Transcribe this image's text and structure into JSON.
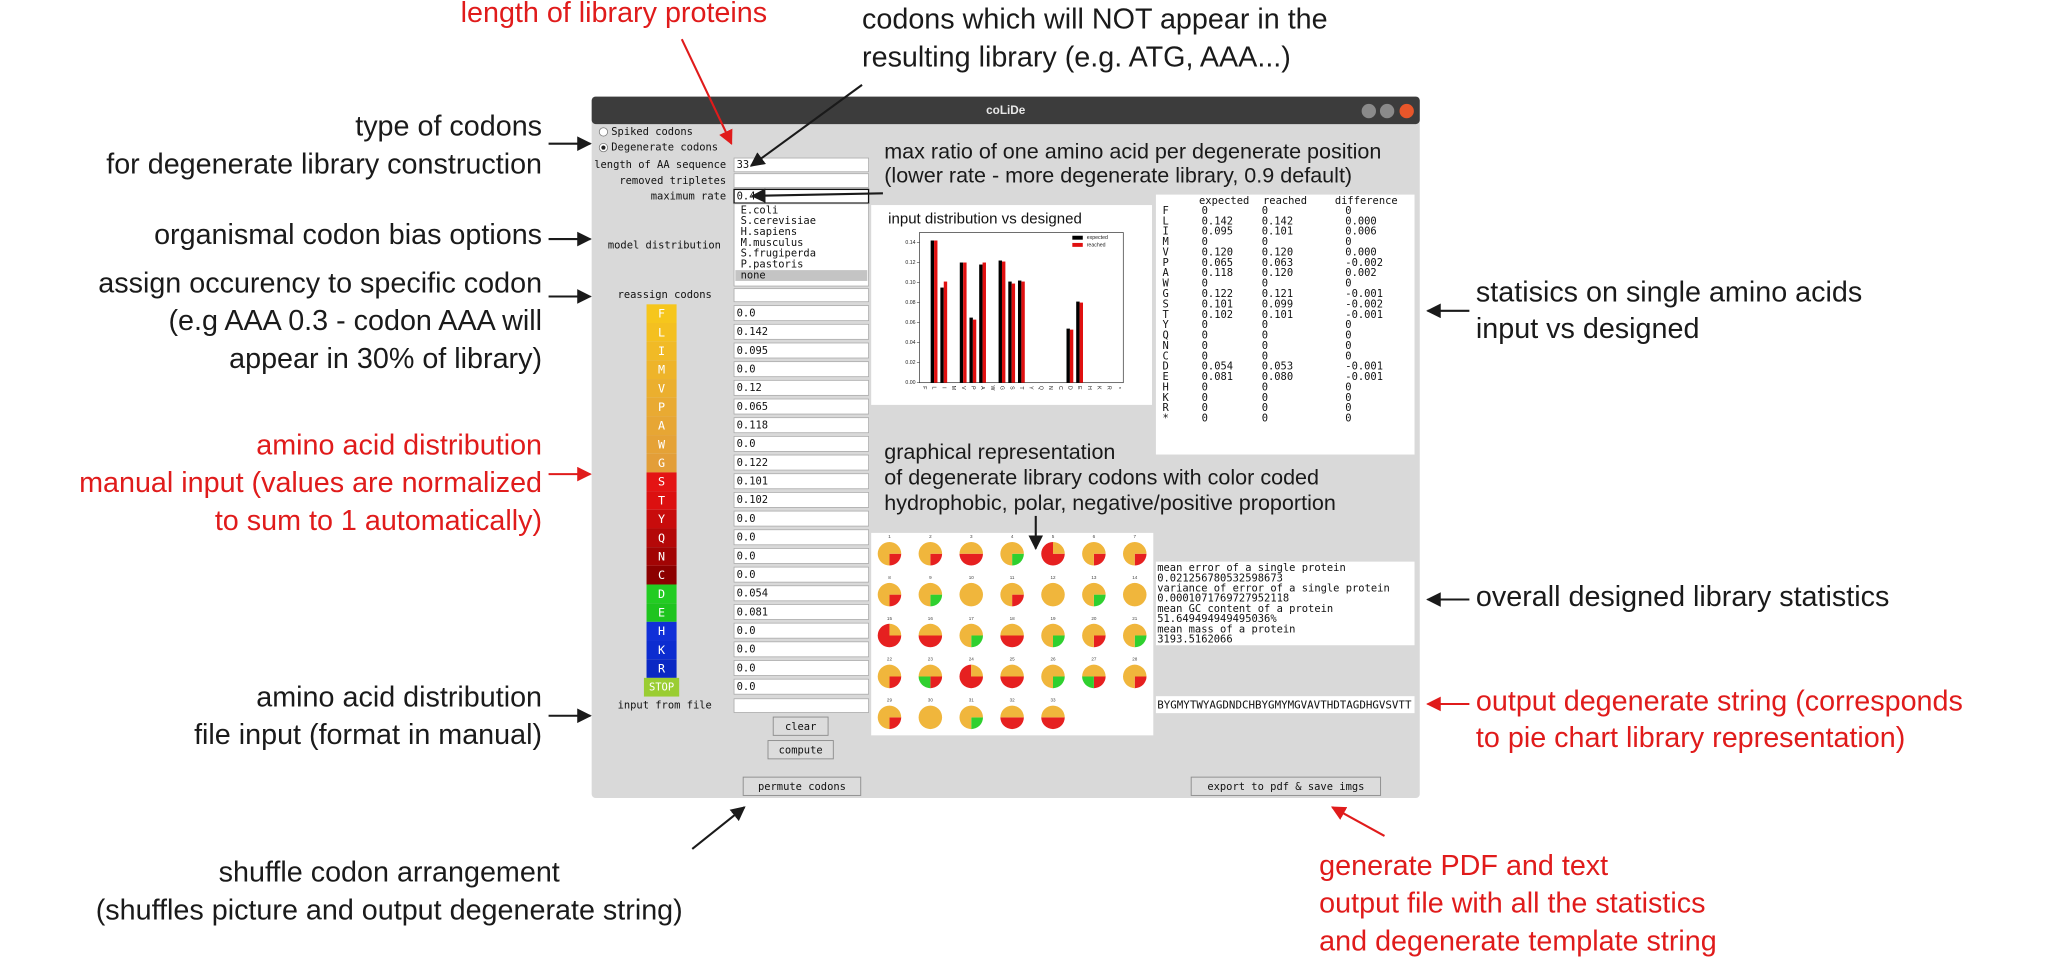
{
  "annotations": [
    {
      "lines": [
        "length of library proteins"
      ],
      "color": "#e01b1b"
    },
    {
      "lines": [
        "codons which will NOT appear in the",
        "resulting library (e.g. ATG, AAA...)"
      ],
      "color": "#1a1a1a"
    },
    {
      "lines": [
        "type of codons",
        "for degenerate library construction"
      ],
      "color": "#1a1a1a"
    },
    {
      "lines": [
        "max ratio of one amino acid per degenerate position",
        "(lower rate - more degenerate library, 0.9 default)"
      ],
      "color": "#1a1a1a"
    },
    {
      "lines": [
        "organismal codon bias options"
      ],
      "color": "#1a1a1a"
    },
    {
      "lines": [
        "assign occurency to specific codon",
        "(e.g AAA 0.3 - codon AAA will",
        "appear in 30% of library)"
      ],
      "color": "#1a1a1a"
    },
    {
      "lines": [
        "statisics on single amino acids",
        "input vs designed"
      ],
      "color": "#1a1a1a"
    },
    {
      "lines": [
        "amino acid distribution",
        "manual input (values are normalized",
        "to sum to 1 automatically)"
      ],
      "color": "#e01b1b"
    },
    {
      "lines": [
        "graphical representation",
        "of degenerate library codons with color coded",
        "hydrophobic, polar, negative/positive proportion"
      ],
      "color": "#1a1a1a"
    },
    {
      "lines": [
        "overall designed library statistics"
      ],
      "color": "#1a1a1a"
    },
    {
      "lines": [
        "amino acid distribution",
        "file input (format in manual)"
      ],
      "color": "#1a1a1a"
    },
    {
      "lines": [
        "output degenerate string (corresponds",
        "to pie chart library representation)"
      ],
      "color": "#e01b1b"
    },
    {
      "lines": [
        "shuffle codon arrangement",
        "(shuffles picture and output degenerate string)"
      ],
      "color": "#1a1a1a"
    },
    {
      "lines": [
        "generate PDF and text",
        "output file with all the statistics",
        "and degenerate template string"
      ],
      "color": "#e01b1b"
    }
  ],
  "window": {
    "title": "coLiDe",
    "radios": [
      "Spiked codons",
      "Degenerate codons"
    ],
    "selected_radio": 1,
    "fields": [
      {
        "label": "length of AA sequence",
        "value": "33"
      },
      {
        "label": "removed tripletes"
      },
      {
        "label": "maximum rate",
        "value": "0.4"
      }
    ],
    "model_label": "model distribution",
    "models": [
      "E.coli",
      "S.cerevisiae",
      "H.sapiens",
      "M.musculus",
      "S.frugiperda",
      "P.pastoris",
      "none"
    ],
    "selected_model": 6,
    "reassign_label": "reassign codons",
    "amino_acids": [
      {
        "letter": "F",
        "color": "#f6c61c",
        "value": "0.0"
      },
      {
        "letter": "L",
        "color": "#f4c020",
        "value": "0.142"
      },
      {
        "letter": "I",
        "color": "#f1ba26",
        "value": "0.095"
      },
      {
        "letter": "M",
        "color": "#eeb42a",
        "value": "0.0"
      },
      {
        "letter": "V",
        "color": "#ebaf2e",
        "value": "0.12"
      },
      {
        "letter": "P",
        "color": "#e9aa32",
        "value": "0.065"
      },
      {
        "letter": "A",
        "color": "#e7a634",
        "value": "0.118"
      },
      {
        "letter": "W",
        "color": "#e5a236",
        "value": "0.0"
      },
      {
        "letter": "G",
        "color": "#e39e38",
        "value": "0.122"
      },
      {
        "letter": "S",
        "color": "#e41414",
        "value": "0.101"
      },
      {
        "letter": "T",
        "color": "#dc1010",
        "value": "0.102"
      },
      {
        "letter": "Y",
        "color": "#c80c0c",
        "value": "0.0"
      },
      {
        "letter": "Q",
        "color": "#b40808",
        "value": "0.0"
      },
      {
        "letter": "N",
        "color": "#a20404",
        "value": "0.0"
      },
      {
        "letter": "C",
        "color": "#8c0000",
        "value": "0.0"
      },
      {
        "letter": "D",
        "color": "#22cc22",
        "value": "0.054"
      },
      {
        "letter": "E",
        "color": "#1ec41e",
        "value": "0.081"
      },
      {
        "letter": "H",
        "color": "#1030d8",
        "value": "0.0"
      },
      {
        "letter": "K",
        "color": "#0c2cd0",
        "value": "0.0"
      },
      {
        "letter": "R",
        "color": "#0a28c4",
        "value": "0.0"
      },
      {
        "letter": "STOP",
        "color": "#9acd32",
        "value": "0.0"
      }
    ],
    "file_label": "input from file",
    "buttons": {
      "clear": "clear",
      "compute": "compute",
      "permute": "permute codons",
      "export": "export to pdf & save imgs"
    }
  },
  "chart_data": {
    "type": "bar",
    "title": "input distribution vs designed",
    "categories": [
      "F",
      "L",
      "I",
      "M",
      "V",
      "P",
      "A",
      "W",
      "G",
      "S",
      "T",
      "Y",
      "Q",
      "N",
      "C",
      "D",
      "E",
      "H",
      "K",
      "R",
      "*"
    ],
    "series": [
      {
        "name": "expected",
        "color": "#000000",
        "values": [
          0,
          0.142,
          0.095,
          0,
          0.12,
          0.065,
          0.118,
          0,
          0.122,
          0.101,
          0.102,
          0,
          0,
          0,
          0,
          0.054,
          0.081,
          0,
          0,
          0,
          0
        ]
      },
      {
        "name": "reached",
        "color": "#e01010",
        "values": [
          0,
          0.142,
          0.101,
          0,
          0.12,
          0.063,
          0.12,
          0,
          0.121,
          0.099,
          0.101,
          0,
          0,
          0,
          0,
          0.053,
          0.08,
          0,
          0,
          0,
          0
        ]
      }
    ],
    "ylim": [
      0,
      0.15
    ],
    "yticks": [
      {
        "value": 0,
        "label": "0.00"
      },
      {
        "value": 0.02,
        "label": "0.02"
      },
      {
        "value": 0.04,
        "label": "0.04"
      },
      {
        "value": 0.06,
        "label": "0.06"
      },
      {
        "value": 0.08,
        "label": "0.08"
      },
      {
        "value": 0.1,
        "label": "0.10"
      },
      {
        "value": 0.12,
        "label": "0.12"
      },
      {
        "value": 0.14,
        "label": "0.14"
      }
    ]
  },
  "stats_table": {
    "header": [
      "expected",
      "reached",
      "difference"
    ],
    "rows": [
      [
        "F",
        "0",
        "0",
        "0"
      ],
      [
        "L",
        "0.142",
        "0.142",
        "0.000"
      ],
      [
        "I",
        "0.095",
        "0.101",
        "0.006"
      ],
      [
        "M",
        "0",
        "0",
        "0"
      ],
      [
        "V",
        "0.120",
        "0.120",
        "0.000"
      ],
      [
        "P",
        "0.065",
        "0.063",
        "-0.002"
      ],
      [
        "A",
        "0.118",
        "0.120",
        "0.002"
      ],
      [
        "W",
        "0",
        "0",
        "0"
      ],
      [
        "G",
        "0.122",
        "0.121",
        "-0.001"
      ],
      [
        "S",
        "0.101",
        "0.099",
        "-0.002"
      ],
      [
        "T",
        "0.102",
        "0.101",
        "-0.001"
      ],
      [
        "Y",
        "0",
        "0",
        "0"
      ],
      [
        "Q",
        "0",
        "0",
        "0"
      ],
      [
        "N",
        "0",
        "0",
        "0"
      ],
      [
        "C",
        "0",
        "0",
        "0"
      ],
      [
        "D",
        "0.054",
        "0.053",
        "-0.001"
      ],
      [
        "E",
        "0.081",
        "0.080",
        "-0.001"
      ],
      [
        "H",
        "0",
        "0",
        "0"
      ],
      [
        "K",
        "0",
        "0",
        "0"
      ],
      [
        "R",
        "0",
        "0",
        "0"
      ],
      [
        "*",
        "0",
        "0",
        "0"
      ]
    ]
  },
  "pies": {
    "colors": [
      "#f0b63c",
      "#e62020",
      "#2fd02f"
    ],
    "items": [
      {
        "label": "1",
        "values": [
          0.75,
          0.25,
          0
        ]
      },
      {
        "label": "2",
        "values": [
          0.75,
          0.25,
          0
        ]
      },
      {
        "label": "3",
        "values": [
          0.5,
          0.5,
          0
        ]
      },
      {
        "label": "4",
        "values": [
          0.75,
          0,
          0.25
        ]
      },
      {
        "label": "5",
        "values": [
          0.25,
          0.75,
          0
        ]
      },
      {
        "label": "6",
        "values": [
          0.75,
          0.25,
          0
        ]
      },
      {
        "label": "7",
        "values": [
          0.75,
          0.25,
          0
        ]
      },
      {
        "label": "8",
        "values": [
          0.75,
          0.25,
          0
        ]
      },
      {
        "label": "9",
        "values": [
          0.75,
          0,
          0.25
        ]
      },
      {
        "label": "10",
        "values": [
          1,
          0,
          0
        ]
      },
      {
        "label": "11",
        "values": [
          0.75,
          0.25,
          0
        ]
      },
      {
        "label": "12",
        "values": [
          1,
          0,
          0
        ]
      },
      {
        "label": "13",
        "values": [
          0.75,
          0,
          0.25
        ]
      },
      {
        "label": "14",
        "values": [
          1,
          0,
          0
        ]
      },
      {
        "label": "15",
        "values": [
          0.25,
          0.75,
          0
        ]
      },
      {
        "label": "16",
        "values": [
          0.5,
          0.5,
          0
        ]
      },
      {
        "label": "17",
        "values": [
          0.75,
          0,
          0.25
        ]
      },
      {
        "label": "18",
        "values": [
          0.5,
          0.5,
          0
        ]
      },
      {
        "label": "19",
        "values": [
          0.75,
          0,
          0.25
        ]
      },
      {
        "label": "20",
        "values": [
          0.75,
          0.25,
          0
        ]
      },
      {
        "label": "21",
        "values": [
          0.75,
          0,
          0.25
        ]
      },
      {
        "label": "22",
        "values": [
          0.75,
          0.25,
          0
        ]
      },
      {
        "label": "23",
        "values": [
          0.5,
          0.25,
          0.25
        ]
      },
      {
        "label": "24",
        "values": [
          0.25,
          0.75,
          0
        ]
      },
      {
        "label": "25",
        "values": [
          0.5,
          0.5,
          0
        ]
      },
      {
        "label": "26",
        "values": [
          0.75,
          0,
          0.25
        ]
      },
      {
        "label": "27",
        "values": [
          0.5,
          0.25,
          0.25
        ]
      },
      {
        "label": "28",
        "values": [
          0.75,
          0.25,
          0
        ]
      },
      {
        "label": "29",
        "values": [
          0.75,
          0.25,
          0
        ]
      },
      {
        "label": "30",
        "values": [
          1,
          0,
          0
        ]
      },
      {
        "label": "31",
        "values": [
          0.75,
          0,
          0.25
        ]
      },
      {
        "label": "32",
        "values": [
          0.5,
          0.5,
          0
        ]
      },
      {
        "label": "33",
        "values": [
          0.5,
          0.5,
          0
        ]
      }
    ]
  },
  "summary": [
    "mean error of a single protein",
    "0.021256780532598673",
    "variance of error of a single protein",
    "0.0001071769727952118",
    "mean GC content of a protein",
    "51.649494949495036%",
    "mean mass of a protein",
    "3193.5162066"
  ],
  "degenerate_string": "BYGMYTWYAGDNDCHBYGMYMGVAVTHDTAGDHGVSVTT"
}
